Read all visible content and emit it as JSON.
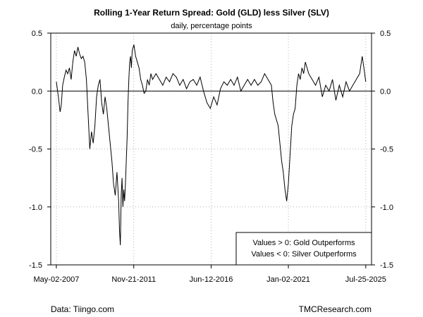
{
  "chart_data": {
    "type": "line",
    "title": "Rolling 1-Year Return Spread: Gold (GLD) less Silver (SLV)",
    "subtitle": "daily, percentage points",
    "ylim": [
      -1.5,
      0.5
    ],
    "y_ticks": [
      "0.5",
      "0.0",
      "-0.5",
      "-1.0",
      "-1.5"
    ],
    "y_tick_values": [
      0.5,
      0.0,
      -0.5,
      -1.0,
      -1.5
    ],
    "x_ticks": [
      "May-02-2007",
      "Nov-21-2011",
      "Jun-12-2016",
      "Jan-02-2021",
      "Jul-25-2025"
    ],
    "x_tick_values": [
      2007.33,
      2011.89,
      2016.45,
      2021.0,
      2025.56
    ],
    "xlim": [
      2007.0,
      2025.9
    ],
    "grid": true,
    "reference_line": 0,
    "legend_placement": "bottom-right",
    "legend": [
      "Values > 0: Gold Outperforms",
      "Values < 0: Silver Outperforms"
    ],
    "series": [
      {
        "name": "GLD minus SLV rolling 1-year return spread",
        "x": [
          2007.33,
          2007.45,
          2007.55,
          2007.62,
          2007.7,
          2007.8,
          2007.9,
          2008.0,
          2008.1,
          2008.2,
          2008.3,
          2008.4,
          2008.5,
          2008.6,
          2008.7,
          2008.8,
          2008.9,
          2009.0,
          2009.1,
          2009.2,
          2009.3,
          2009.4,
          2009.5,
          2009.6,
          2009.7,
          2009.8,
          2009.9,
          2010.0,
          2010.1,
          2010.2,
          2010.3,
          2010.4,
          2010.5,
          2010.6,
          2010.7,
          2010.8,
          2010.9,
          2011.0,
          2011.05,
          2011.1,
          2011.15,
          2011.2,
          2011.25,
          2011.3,
          2011.35,
          2011.4,
          2011.45,
          2011.5,
          2011.55,
          2011.6,
          2011.65,
          2011.7,
          2011.75,
          2011.8,
          2011.9,
          2012.0,
          2012.1,
          2012.2,
          2012.3,
          2012.4,
          2012.5,
          2012.6,
          2012.7,
          2012.8,
          2012.9,
          2013.0,
          2013.2,
          2013.4,
          2013.6,
          2013.8,
          2014.0,
          2014.2,
          2014.4,
          2014.6,
          2014.8,
          2015.0,
          2015.2,
          2015.4,
          2015.6,
          2015.8,
          2016.0,
          2016.2,
          2016.4,
          2016.6,
          2016.8,
          2017.0,
          2017.2,
          2017.4,
          2017.6,
          2017.8,
          2018.0,
          2018.2,
          2018.4,
          2018.6,
          2018.8,
          2019.0,
          2019.2,
          2019.4,
          2019.6,
          2019.8,
          2020.0,
          2020.1,
          2020.2,
          2020.3,
          2020.4,
          2020.5,
          2020.6,
          2020.7,
          2020.8,
          2020.9,
          2021.0,
          2021.1,
          2021.2,
          2021.3,
          2021.4,
          2021.5,
          2021.6,
          2021.7,
          2021.8,
          2021.9,
          2022.0,
          2022.2,
          2022.4,
          2022.6,
          2022.8,
          2023.0,
          2023.2,
          2023.4,
          2023.6,
          2023.8,
          2024.0,
          2024.2,
          2024.4,
          2024.6,
          2024.8,
          2025.0,
          2025.2,
          2025.35,
          2025.45,
          2025.56
        ],
        "values": [
          0.08,
          -0.05,
          -0.18,
          -0.12,
          0.05,
          0.12,
          0.18,
          0.15,
          0.2,
          0.1,
          0.25,
          0.35,
          0.3,
          0.38,
          0.32,
          0.28,
          0.3,
          0.25,
          0.1,
          -0.2,
          -0.5,
          -0.35,
          -0.45,
          -0.3,
          -0.05,
          0.05,
          0.1,
          -0.1,
          -0.2,
          -0.05,
          -0.15,
          -0.3,
          -0.45,
          -0.6,
          -0.8,
          -0.9,
          -0.7,
          -0.95,
          -1.2,
          -1.33,
          -0.9,
          -0.75,
          -1.0,
          -0.85,
          -0.95,
          -0.8,
          -0.6,
          -0.4,
          -0.1,
          0.1,
          0.25,
          0.3,
          0.2,
          0.35,
          0.4,
          0.3,
          0.25,
          0.2,
          0.1,
          0.05,
          -0.02,
          0.0,
          0.1,
          0.05,
          0.15,
          0.1,
          0.15,
          0.1,
          0.05,
          0.12,
          0.08,
          0.15,
          0.12,
          0.05,
          0.1,
          0.02,
          0.08,
          0.1,
          0.05,
          0.12,
          0.0,
          -0.1,
          -0.15,
          -0.05,
          -0.12,
          0.02,
          0.08,
          0.05,
          0.1,
          0.05,
          0.12,
          0.0,
          0.05,
          0.1,
          0.05,
          0.1,
          0.05,
          0.08,
          0.15,
          0.1,
          0.05,
          -0.1,
          -0.2,
          -0.25,
          -0.3,
          -0.45,
          -0.6,
          -0.7,
          -0.85,
          -0.95,
          -0.8,
          -0.55,
          -0.3,
          -0.2,
          -0.15,
          0.05,
          0.15,
          0.1,
          0.2,
          0.15,
          0.25,
          0.15,
          0.1,
          0.05,
          0.12,
          -0.05,
          0.05,
          0.0,
          0.1,
          -0.08,
          0.05,
          -0.05,
          0.08,
          0.0,
          0.05,
          0.1,
          0.15,
          0.3,
          0.2,
          0.08
        ]
      }
    ]
  },
  "footer": {
    "left": "Data: Tiingo.com",
    "right": "TMCResearch.com"
  },
  "colors": {
    "line": "#000000",
    "grid": "#b3b3b3",
    "background": "#ffffff"
  }
}
